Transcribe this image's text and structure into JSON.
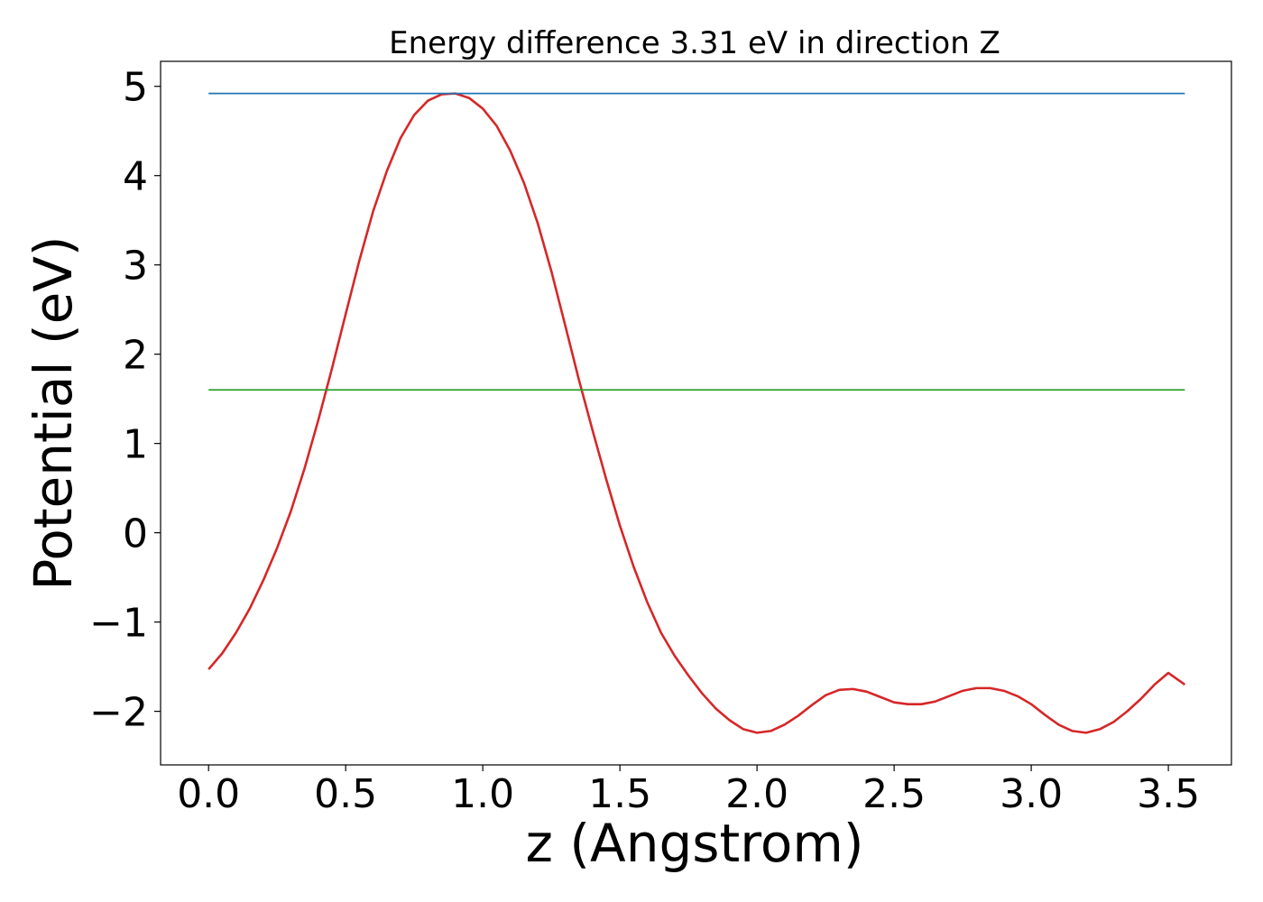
{
  "chart_data": {
    "type": "line",
    "title": "Energy difference 3.31 eV in direction Z",
    "xlabel": "z (Angstrom)",
    "ylabel": "Potential (eV)",
    "xlim": [
      -0.175,
      3.73
    ],
    "ylim": [
      -2.6,
      5.28
    ],
    "xticks": [
      0.0,
      0.5,
      1.0,
      1.5,
      2.0,
      2.5,
      3.0,
      3.5
    ],
    "xtick_labels": [
      "0.0",
      "0.5",
      "1.0",
      "1.5",
      "2.0",
      "2.5",
      "3.0",
      "3.5"
    ],
    "yticks": [
      -2,
      -1,
      0,
      1,
      2,
      3,
      4,
      5
    ],
    "ytick_labels": [
      "−2",
      "−1",
      "0",
      "1",
      "2",
      "3",
      "4",
      "5"
    ],
    "grid": false,
    "series": [
      {
        "color": "#d62728",
        "x": [
          0.0,
          0.05,
          0.1,
          0.15,
          0.2,
          0.25,
          0.3,
          0.35,
          0.4,
          0.45,
          0.5,
          0.55,
          0.6,
          0.65,
          0.7,
          0.75,
          0.8,
          0.85,
          0.9,
          0.95,
          1.0,
          1.05,
          1.1,
          1.15,
          1.2,
          1.25,
          1.3,
          1.35,
          1.4,
          1.45,
          1.5,
          1.55,
          1.6,
          1.65,
          1.7,
          1.75,
          1.8,
          1.85,
          1.9,
          1.95,
          2.0,
          2.05,
          2.1,
          2.15,
          2.2,
          2.25,
          2.3,
          2.35,
          2.4,
          2.45,
          2.5,
          2.55,
          2.6,
          2.65,
          2.7,
          2.75,
          2.8,
          2.85,
          2.9,
          2.95,
          3.0,
          3.05,
          3.1,
          3.15,
          3.2,
          3.25,
          3.3,
          3.35,
          3.4,
          3.45,
          3.5,
          3.56
        ],
        "y": [
          -1.53,
          -1.35,
          -1.12,
          -0.85,
          -0.53,
          -0.17,
          0.24,
          0.72,
          1.26,
          1.84,
          2.45,
          3.05,
          3.6,
          4.05,
          4.42,
          4.68,
          4.84,
          4.91,
          4.92,
          4.87,
          4.75,
          4.56,
          4.28,
          3.92,
          3.47,
          2.93,
          2.33,
          1.72,
          1.15,
          0.6,
          0.08,
          -0.38,
          -0.78,
          -1.12,
          -1.38,
          -1.6,
          -1.8,
          -1.97,
          -2.1,
          -2.2,
          -2.24,
          -2.22,
          -2.15,
          -2.05,
          -1.93,
          -1.82,
          -1.76,
          -1.75,
          -1.78,
          -1.84,
          -1.9,
          -1.92,
          -1.92,
          -1.89,
          -1.83,
          -1.77,
          -1.74,
          -1.74,
          -1.77,
          -1.83,
          -1.92,
          -2.04,
          -2.15,
          -2.22,
          -2.24,
          -2.2,
          -2.12,
          -2.0,
          -1.86,
          -1.7,
          -1.57,
          -1.7
        ]
      },
      {
        "color": "#1f77b4",
        "x": [
          0.0,
          3.56
        ],
        "y": [
          4.92,
          4.92
        ]
      },
      {
        "color": "#2ca02c",
        "x": [
          0.0,
          3.56
        ],
        "y": [
          1.6,
          1.6
        ]
      }
    ]
  }
}
